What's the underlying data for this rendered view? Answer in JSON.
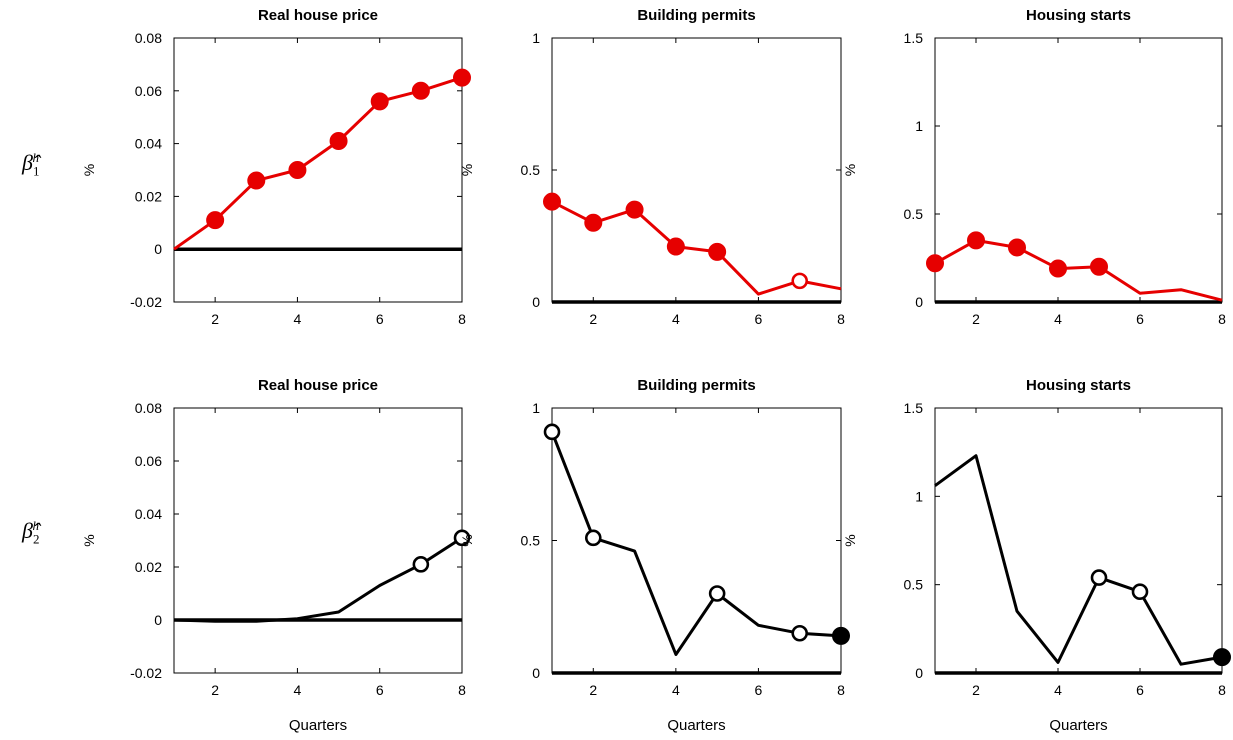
{
  "row_labels": [
    {
      "symbol": "β",
      "sub": "1",
      "sup": "h"
    },
    {
      "symbol": "β",
      "sub": "2",
      "sup": "h"
    }
  ],
  "colors": {
    "row1": "#e60000",
    "row2": "#000000",
    "axis": "#000000"
  },
  "chart_data": [
    {
      "type": "line",
      "title": "Real house price",
      "ylabel": "%",
      "xlabel": "",
      "x": [
        1,
        2,
        3,
        4,
        5,
        6,
        7,
        8
      ],
      "y": [
        0.0,
        0.011,
        0.026,
        0.03,
        0.041,
        0.056,
        0.06,
        0.065
      ],
      "markers": [
        "none",
        "filled",
        "filled",
        "filled",
        "filled",
        "filled",
        "filled",
        "filled"
      ],
      "xlim": [
        1,
        8
      ],
      "ylim": [
        -0.02,
        0.08
      ],
      "xticks": [
        "2",
        "4",
        "6",
        "8"
      ],
      "xtick_values": [
        2,
        4,
        6,
        8
      ],
      "yticks": [
        "-0.02",
        "0",
        "0.02",
        "0.04",
        "0.06",
        "0.08"
      ],
      "ytick_values": [
        -0.02,
        0,
        0.02,
        0.04,
        0.06,
        0.08
      ],
      "zero_line": 0,
      "color": "#e60000"
    },
    {
      "type": "line",
      "title": "Building permits",
      "ylabel": "%",
      "xlabel": "",
      "x": [
        1,
        2,
        3,
        4,
        5,
        6,
        7,
        8
      ],
      "y": [
        0.38,
        0.3,
        0.35,
        0.21,
        0.19,
        0.03,
        0.08,
        0.05
      ],
      "markers": [
        "filled",
        "filled",
        "filled",
        "filled",
        "filled",
        "none",
        "open",
        "none"
      ],
      "xlim": [
        1,
        8
      ],
      "ylim": [
        0,
        1
      ],
      "xticks": [
        "2",
        "4",
        "6",
        "8"
      ],
      "xtick_values": [
        2,
        4,
        6,
        8
      ],
      "yticks": [
        "0",
        "0.5",
        "1"
      ],
      "ytick_values": [
        0,
        0.5,
        1
      ],
      "zero_line": 0,
      "color": "#e60000"
    },
    {
      "type": "line",
      "title": "Housing starts",
      "ylabel": "%",
      "xlabel": "",
      "x": [
        1,
        2,
        3,
        4,
        5,
        6,
        7,
        8
      ],
      "y": [
        0.22,
        0.35,
        0.31,
        0.19,
        0.2,
        0.05,
        0.07,
        0.01
      ],
      "markers": [
        "filled",
        "filled",
        "filled",
        "filled",
        "filled",
        "none",
        "none",
        "none"
      ],
      "xlim": [
        1,
        8
      ],
      "ylim": [
        0,
        1.5
      ],
      "xticks": [
        "2",
        "4",
        "6",
        "8"
      ],
      "xtick_values": [
        2,
        4,
        6,
        8
      ],
      "yticks": [
        "0",
        "0.5",
        "1",
        "1.5"
      ],
      "ytick_values": [
        0,
        0.5,
        1,
        1.5
      ],
      "zero_line": 0,
      "color": "#e60000"
    },
    {
      "type": "line",
      "title": "Real house price",
      "ylabel": "%",
      "xlabel": "Quarters",
      "x": [
        1,
        2,
        3,
        4,
        5,
        6,
        7,
        8
      ],
      "y": [
        0.0,
        -0.0005,
        -0.0005,
        0.0005,
        0.003,
        0.013,
        0.021,
        0.031
      ],
      "markers": [
        "none",
        "none",
        "none",
        "none",
        "none",
        "none",
        "open",
        "open"
      ],
      "xlim": [
        1,
        8
      ],
      "ylim": [
        -0.02,
        0.08
      ],
      "xticks": [
        "2",
        "4",
        "6",
        "8"
      ],
      "xtick_values": [
        2,
        4,
        6,
        8
      ],
      "yticks": [
        "-0.02",
        "0",
        "0.02",
        "0.04",
        "0.06",
        "0.08"
      ],
      "ytick_values": [
        -0.02,
        0,
        0.02,
        0.04,
        0.06,
        0.08
      ],
      "zero_line": 0,
      "color": "#000000"
    },
    {
      "type": "line",
      "title": "Building permits",
      "ylabel": "%",
      "xlabel": "Quarters",
      "x": [
        1,
        2,
        3,
        4,
        5,
        6,
        7,
        8
      ],
      "y": [
        0.91,
        0.51,
        0.46,
        0.07,
        0.3,
        0.18,
        0.15,
        0.14
      ],
      "markers": [
        "open",
        "open",
        "none",
        "none",
        "open",
        "none",
        "open",
        "filled"
      ],
      "xlim": [
        1,
        8
      ],
      "ylim": [
        0,
        1
      ],
      "xticks": [
        "2",
        "4",
        "6",
        "8"
      ],
      "xtick_values": [
        2,
        4,
        6,
        8
      ],
      "yticks": [
        "0",
        "0.5",
        "1"
      ],
      "ytick_values": [
        0,
        0.5,
        1
      ],
      "zero_line": 0,
      "color": "#000000"
    },
    {
      "type": "line",
      "title": "Housing starts",
      "ylabel": "%",
      "xlabel": "Quarters",
      "x": [
        1,
        2,
        3,
        4,
        5,
        6,
        7,
        8
      ],
      "y": [
        1.06,
        1.23,
        0.35,
        0.06,
        0.54,
        0.46,
        0.05,
        0.09
      ],
      "markers": [
        "none",
        "none",
        "none",
        "none",
        "open",
        "open",
        "none",
        "filled"
      ],
      "xlim": [
        1,
        8
      ],
      "ylim": [
        0,
        1.5
      ],
      "xticks": [
        "2",
        "4",
        "6",
        "8"
      ],
      "xtick_values": [
        2,
        4,
        6,
        8
      ],
      "yticks": [
        "0",
        "0.5",
        "1",
        "1.5"
      ],
      "ytick_values": [
        0,
        0.5,
        1,
        1.5
      ],
      "zero_line": 0,
      "color": "#000000"
    }
  ]
}
